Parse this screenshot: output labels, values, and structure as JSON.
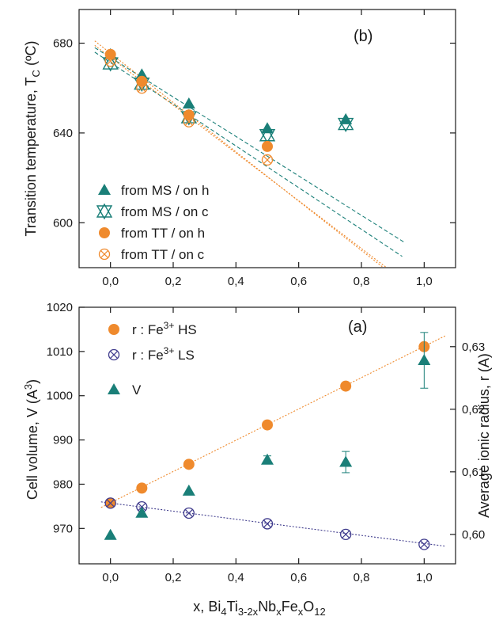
{
  "colors": {
    "teal": "#1a7f78",
    "orange": "#ef8a2d",
    "purple": "#3e3a8c",
    "axis": "#1a1a1a"
  },
  "chart_data": [
    {
      "panel": "(b)",
      "type": "scatter",
      "ylabel_main": "Transition temperature, T",
      "ylabel_sub": "C",
      "ylabel_unit": " (ºC)",
      "xlim": [
        -0.1,
        1.1
      ],
      "ylim": [
        580,
        695
      ],
      "xticks": [
        0.0,
        0.2,
        0.4,
        0.6,
        0.8,
        1.0
      ],
      "xtick_labels": [
        "0,0",
        "0,2",
        "0,4",
        "0,6",
        "0,8",
        "1,0"
      ],
      "yticks": [
        600,
        640,
        680
      ],
      "ytick_labels": [
        "600",
        "640",
        "680"
      ],
      "legend": [
        "from MS / on  h",
        "from MS / on  c",
        "from TT / on h",
        "from TT / on c"
      ],
      "series": [
        {
          "name": "from MS / on  h",
          "marker": "triangle",
          "color": "teal",
          "x": [
            0.0,
            0.1,
            0.25,
            0.5,
            0.75
          ],
          "y": [
            675,
            666,
            653,
            642,
            646
          ]
        },
        {
          "name": "from MS / on  c",
          "marker": "open-triangle-x",
          "color": "teal",
          "x": [
            0.0,
            0.1,
            0.25,
            0.5,
            0.75
          ],
          "y": [
            671,
            662,
            647,
            639,
            644
          ]
        },
        {
          "name": "from TT / on h",
          "marker": "circle",
          "color": "orange",
          "x": [
            0.0,
            0.1,
            0.25,
            0.5
          ],
          "y": [
            675,
            663,
            648,
            634
          ]
        },
        {
          "name": "from TT / on c",
          "marker": "open-circle-x",
          "color": "orange",
          "x": [
            0.0,
            0.1,
            0.25,
            0.5
          ],
          "y": [
            672,
            660,
            645,
            628
          ]
        }
      ],
      "fit_lines": [
        {
          "style": "dashed",
          "color": "teal",
          "x": [
            -0.05,
            0.94
          ],
          "y": [
            678,
            591
          ]
        },
        {
          "style": "dashed",
          "color": "teal",
          "x": [
            -0.05,
            0.93
          ],
          "y": [
            676,
            585
          ]
        },
        {
          "style": "dotted",
          "color": "orange",
          "x": [
            -0.05,
            0.87
          ],
          "y": [
            681,
            580
          ]
        },
        {
          "style": "dotted",
          "color": "orange",
          "x": [
            -0.05,
            0.88
          ],
          "y": [
            679,
            580
          ]
        }
      ]
    },
    {
      "panel": "(a)",
      "type": "scatter",
      "xlabel_prefix": "x, ",
      "ylabel_left_main": "Cell volume, V (A",
      "ylabel_left_sup": "3",
      "ylabel_left_close": ")",
      "ylabel_right": "Average ionic radius, r (A)",
      "xlim": [
        -0.1,
        1.1
      ],
      "ylim_left": [
        962,
        1020
      ],
      "ylim_right": [
        0.5953,
        0.6363
      ],
      "xticks": [
        0.0,
        0.2,
        0.4,
        0.6,
        0.8,
        1.0
      ],
      "xtick_labels": [
        "0,0",
        "0,2",
        "0,4",
        "0,6",
        "0,8",
        "1,0"
      ],
      "yticks_left": [
        970,
        980,
        990,
        1000,
        1010,
        1020
      ],
      "ytick_labels_left": [
        "970",
        "980",
        "990",
        "1000",
        "1010",
        "1020"
      ],
      "yticks_right": [
        0.6,
        0.61,
        0.62,
        0.63
      ],
      "ytick_labels_right": [
        "0,60",
        "0,61",
        "0,62",
        "0,63"
      ],
      "legend": [
        {
          "prefix": "r : Fe",
          "sup": "3+",
          "suffix": " HS"
        },
        {
          "prefix": "r : Fe",
          "sup": "3+",
          "suffix": " LS"
        },
        {
          "prefix": "V",
          "sup": "",
          "suffix": ""
        }
      ],
      "series": [
        {
          "name": "r : Fe3+ HS",
          "axis": "right",
          "marker": "circle",
          "color": "orange",
          "x": [
            0.0,
            0.1,
            0.25,
            0.5,
            0.75,
            1.0
          ],
          "y": [
            0.605,
            0.6074,
            0.6112,
            0.6175,
            0.6237,
            0.63
          ]
        },
        {
          "name": "r : Fe3+ LS",
          "axis": "right",
          "marker": "open-circle-x",
          "color": "purple",
          "x": [
            0.0,
            0.1,
            0.25,
            0.5,
            0.75,
            1.0
          ],
          "y": [
            0.605,
            0.6044,
            0.6034,
            0.6017,
            0.6,
            0.5984
          ]
        },
        {
          "name": "V",
          "axis": "left",
          "marker": "triangle",
          "color": "teal",
          "x": [
            0.0,
            0.1,
            0.25,
            0.5,
            0.75,
            1.0
          ],
          "y": [
            968.5,
            973.5,
            978.5,
            985.5,
            985.0,
            1008.0
          ],
          "yerr": [
            0,
            0,
            0,
            0.9,
            2.4,
            6.3
          ]
        }
      ],
      "fit_lines": [
        {
          "style": "dotted",
          "color": "orange",
          "axis": "right",
          "x": [
            -0.03,
            1.07
          ],
          "y": [
            0.6043,
            0.6318
          ]
        },
        {
          "style": "dotted",
          "color": "purple",
          "axis": "right",
          "x": [
            -0.03,
            1.07
          ],
          "y": [
            0.6052,
            0.5981
          ]
        }
      ]
    }
  ]
}
